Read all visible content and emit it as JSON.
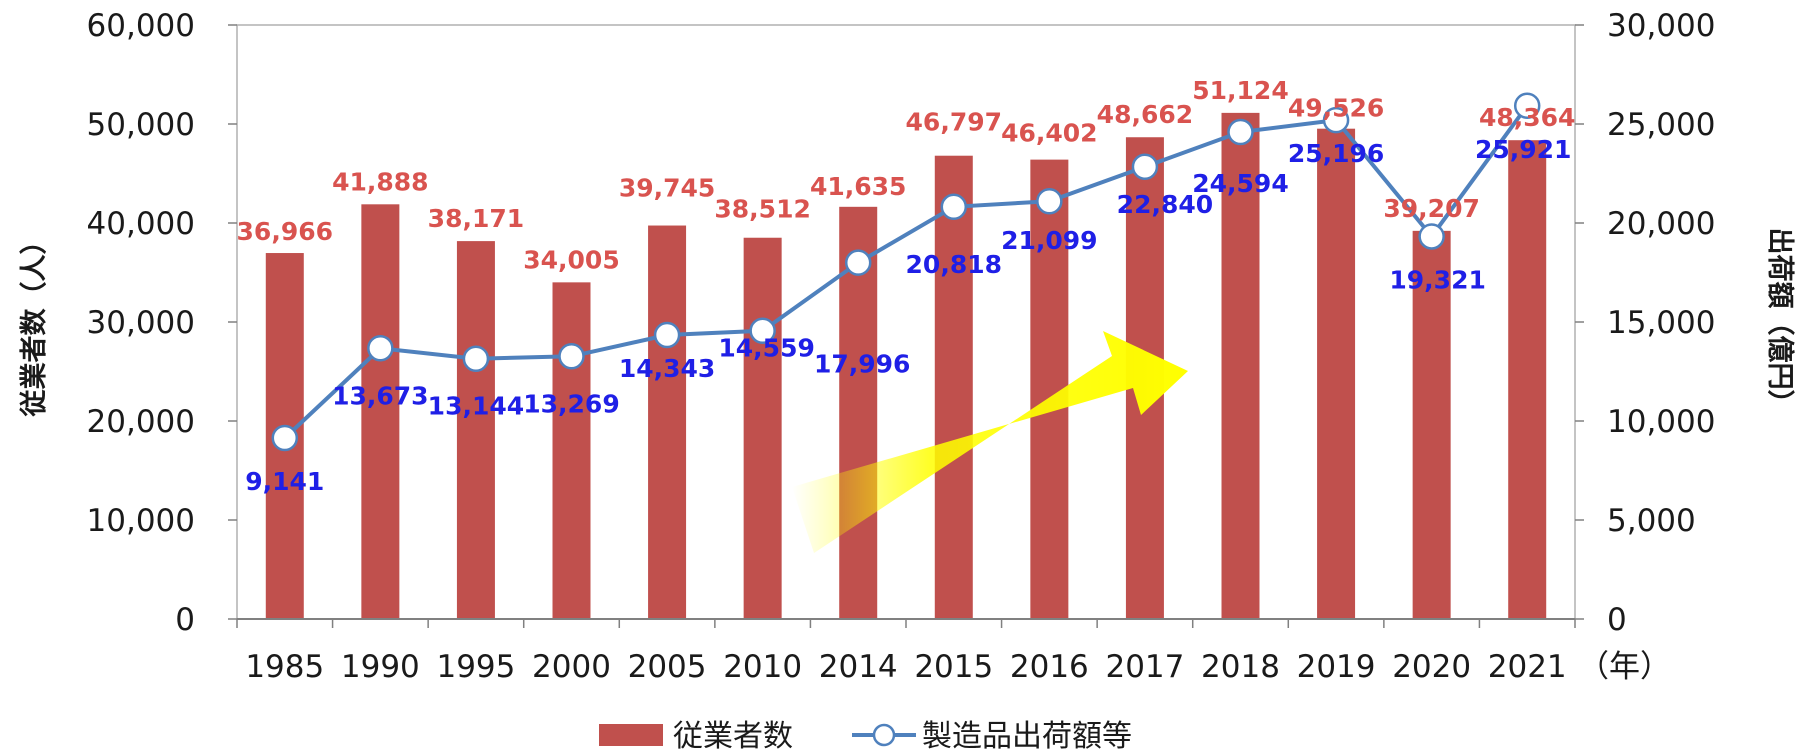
{
  "chart_data": {
    "type": "bar",
    "categories": [
      "1985",
      "1990",
      "1995",
      "2000",
      "2005",
      "2010",
      "2014",
      "2015",
      "2016",
      "2017",
      "2018",
      "2019",
      "2020",
      "2021"
    ],
    "x_unit": "（年）",
    "series": [
      {
        "name": "従業者数",
        "type": "bar",
        "axis": "left",
        "values": [
          36966,
          41888,
          38171,
          34005,
          39745,
          38512,
          41635,
          46797,
          46402,
          48662,
          51124,
          49526,
          39207,
          48364
        ],
        "labels": [
          "36,966",
          "41,888",
          "38,171",
          "34,005",
          "39,745",
          "38,512",
          "41,635",
          "46,797",
          "46,402",
          "48,662",
          "51,124",
          "49,526",
          "39,207",
          "48,364"
        ]
      },
      {
        "name": "製造品出荷額等",
        "type": "line",
        "axis": "right",
        "values": [
          9141,
          13673,
          13144,
          13269,
          14343,
          14559,
          17996,
          20818,
          21099,
          22840,
          24594,
          25196,
          19321,
          25921
        ],
        "labels": [
          "9,141",
          "13,673",
          "13,144",
          "13,269",
          "14,343",
          "14,559",
          "17,996",
          "20,818",
          "21,099",
          "22,840",
          "24,594",
          "25,196",
          "19,321",
          "25,921"
        ]
      }
    ],
    "y_left": {
      "title": "従業者数（人）",
      "range": [
        0,
        60000
      ],
      "ticks": [
        "0",
        "10,000",
        "20,000",
        "30,000",
        "40,000",
        "50,000",
        "60,000"
      ]
    },
    "y_right": {
      "title": "出荷額（億円）",
      "range": [
        0,
        30000
      ],
      "ticks": [
        "0",
        "5,000",
        "10,000",
        "15,000",
        "20,000",
        "25,000",
        "30,000"
      ]
    },
    "grid": false,
    "legend": "bottom",
    "annotation": "yellow upward-trend arrow"
  },
  "colors": {
    "bar": "#c0504d",
    "bar_label": "#d9534f",
    "line": "#4f81bd",
    "line_label": "#1f1fe6",
    "marker_fill": "#ffffff",
    "arrow": "#ffff00",
    "axis": "#808080",
    "frame": "#b0b0b0"
  }
}
